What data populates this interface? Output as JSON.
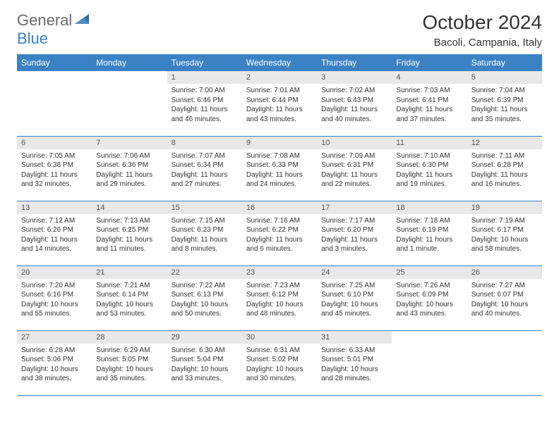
{
  "logo": {
    "text1": "General",
    "text2": "Blue"
  },
  "title": "October 2024",
  "location": "Bacoli, Campania, Italy",
  "colors": {
    "header_bg": "#3b82c4",
    "day_num_bg": "#e8e8e8",
    "border": "#3b82c4",
    "text": "#333333",
    "logo_gray": "#6b6b6b",
    "logo_blue": "#3b82c4"
  },
  "weekdays": [
    "Sunday",
    "Monday",
    "Tuesday",
    "Wednesday",
    "Thursday",
    "Friday",
    "Saturday"
  ],
  "first_day_col": 2,
  "days": [
    {
      "n": 1,
      "sunrise": "7:00 AM",
      "sunset": "6:46 PM",
      "daylight": "11 hours and 46 minutes."
    },
    {
      "n": 2,
      "sunrise": "7:01 AM",
      "sunset": "6:44 PM",
      "daylight": "11 hours and 43 minutes."
    },
    {
      "n": 3,
      "sunrise": "7:02 AM",
      "sunset": "6:43 PM",
      "daylight": "11 hours and 40 minutes."
    },
    {
      "n": 4,
      "sunrise": "7:03 AM",
      "sunset": "6:41 PM",
      "daylight": "11 hours and 37 minutes."
    },
    {
      "n": 5,
      "sunrise": "7:04 AM",
      "sunset": "6:39 PM",
      "daylight": "11 hours and 35 minutes."
    },
    {
      "n": 6,
      "sunrise": "7:05 AM",
      "sunset": "6:38 PM",
      "daylight": "11 hours and 32 minutes."
    },
    {
      "n": 7,
      "sunrise": "7:06 AM",
      "sunset": "6:36 PM",
      "daylight": "11 hours and 29 minutes."
    },
    {
      "n": 8,
      "sunrise": "7:07 AM",
      "sunset": "6:34 PM",
      "daylight": "11 hours and 27 minutes."
    },
    {
      "n": 9,
      "sunrise": "7:08 AM",
      "sunset": "6:33 PM",
      "daylight": "11 hours and 24 minutes."
    },
    {
      "n": 10,
      "sunrise": "7:09 AM",
      "sunset": "6:31 PM",
      "daylight": "11 hours and 22 minutes."
    },
    {
      "n": 11,
      "sunrise": "7:10 AM",
      "sunset": "6:30 PM",
      "daylight": "11 hours and 19 minutes."
    },
    {
      "n": 12,
      "sunrise": "7:11 AM",
      "sunset": "6:28 PM",
      "daylight": "11 hours and 16 minutes."
    },
    {
      "n": 13,
      "sunrise": "7:12 AM",
      "sunset": "6:26 PM",
      "daylight": "11 hours and 14 minutes."
    },
    {
      "n": 14,
      "sunrise": "7:13 AM",
      "sunset": "6:25 PM",
      "daylight": "11 hours and 11 minutes."
    },
    {
      "n": 15,
      "sunrise": "7:15 AM",
      "sunset": "6:23 PM",
      "daylight": "11 hours and 8 minutes."
    },
    {
      "n": 16,
      "sunrise": "7:16 AM",
      "sunset": "6:22 PM",
      "daylight": "11 hours and 6 minutes."
    },
    {
      "n": 17,
      "sunrise": "7:17 AM",
      "sunset": "6:20 PM",
      "daylight": "11 hours and 3 minutes."
    },
    {
      "n": 18,
      "sunrise": "7:18 AM",
      "sunset": "6:19 PM",
      "daylight": "11 hours and 1 minute."
    },
    {
      "n": 19,
      "sunrise": "7:19 AM",
      "sunset": "6:17 PM",
      "daylight": "10 hours and 58 minutes."
    },
    {
      "n": 20,
      "sunrise": "7:20 AM",
      "sunset": "6:16 PM",
      "daylight": "10 hours and 55 minutes."
    },
    {
      "n": 21,
      "sunrise": "7:21 AM",
      "sunset": "6:14 PM",
      "daylight": "10 hours and 53 minutes."
    },
    {
      "n": 22,
      "sunrise": "7:22 AM",
      "sunset": "6:13 PM",
      "daylight": "10 hours and 50 minutes."
    },
    {
      "n": 23,
      "sunrise": "7:23 AM",
      "sunset": "6:12 PM",
      "daylight": "10 hours and 48 minutes."
    },
    {
      "n": 24,
      "sunrise": "7:25 AM",
      "sunset": "6:10 PM",
      "daylight": "10 hours and 45 minutes."
    },
    {
      "n": 25,
      "sunrise": "7:26 AM",
      "sunset": "6:09 PM",
      "daylight": "10 hours and 43 minutes."
    },
    {
      "n": 26,
      "sunrise": "7:27 AM",
      "sunset": "6:07 PM",
      "daylight": "10 hours and 40 minutes."
    },
    {
      "n": 27,
      "sunrise": "6:28 AM",
      "sunset": "5:06 PM",
      "daylight": "10 hours and 38 minutes."
    },
    {
      "n": 28,
      "sunrise": "6:29 AM",
      "sunset": "5:05 PM",
      "daylight": "10 hours and 35 minutes."
    },
    {
      "n": 29,
      "sunrise": "6:30 AM",
      "sunset": "5:04 PM",
      "daylight": "10 hours and 33 minutes."
    },
    {
      "n": 30,
      "sunrise": "6:31 AM",
      "sunset": "5:02 PM",
      "daylight": "10 hours and 30 minutes."
    },
    {
      "n": 31,
      "sunrise": "6:33 AM",
      "sunset": "5:01 PM",
      "daylight": "10 hours and 28 minutes."
    }
  ]
}
